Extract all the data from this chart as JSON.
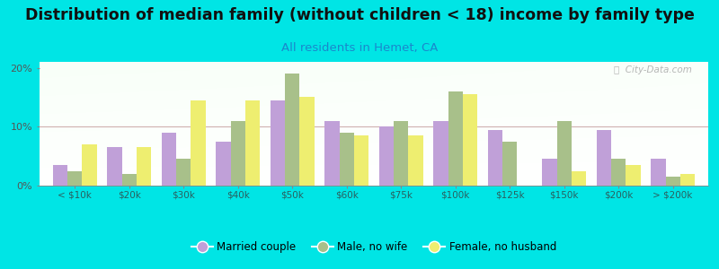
{
  "title": "Distribution of median family (without children < 18) income by family type",
  "subtitle": "All residents in Hemet, CA",
  "categories": [
    "< $10k",
    "$20k",
    "$30k",
    "$40k",
    "$50k",
    "$60k",
    "$75k",
    "$100k",
    "$125k",
    "$150k",
    "$200k",
    "> $200k"
  ],
  "married_couple": [
    3.5,
    6.5,
    9.0,
    7.5,
    14.5,
    11.0,
    10.0,
    11.0,
    9.5,
    4.5,
    9.5,
    4.5
  ],
  "male_no_wife": [
    2.5,
    2.0,
    4.5,
    11.0,
    19.0,
    9.0,
    11.0,
    16.0,
    7.5,
    11.0,
    4.5,
    1.5
  ],
  "female_no_husband": [
    7.0,
    6.5,
    14.5,
    14.5,
    15.0,
    8.5,
    8.5,
    15.5,
    0.0,
    2.5,
    3.5,
    2.0
  ],
  "married_color": "#c0a0d8",
  "male_color": "#a8c08a",
  "female_color": "#eeee70",
  "background_color": "#00e5e5",
  "ylim": [
    0,
    21
  ],
  "yticks": [
    0,
    10,
    20
  ],
  "title_fontsize": 12.5,
  "subtitle_fontsize": 9.5,
  "watermark": "ⓘ  City-Data.com"
}
